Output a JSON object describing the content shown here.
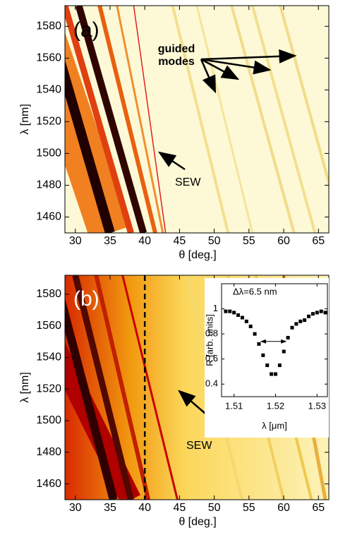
{
  "chart_data": [
    {
      "type": "heatmap",
      "xlabel": "θ [deg.]",
      "ylabel": "λ [nm]",
      "xlim": [
        28.5,
        66.5
      ],
      "xticks": [
        30,
        35,
        40,
        45,
        50,
        55,
        60,
        65
      ],
      "ylim": [
        1450,
        1593
      ],
      "yticks": [
        1460,
        1480,
        1500,
        1520,
        1540,
        1560,
        1580
      ],
      "annotations": [
        "(a)",
        "guided",
        "modes",
        "SEW"
      ]
    },
    {
      "type": "heatmap",
      "xlabel": "θ [deg.]",
      "ylabel": "λ [nm]",
      "xlim": [
        28.5,
        66.5
      ],
      "xticks": [
        30,
        35,
        40,
        45,
        50,
        55,
        60,
        65
      ],
      "ylim": [
        1450,
        1592
      ],
      "yticks": [
        1460,
        1480,
        1500,
        1520,
        1540,
        1560,
        1580
      ],
      "vline": 40,
      "annotations": [
        "(b)",
        "SEW"
      ]
    },
    {
      "type": "line",
      "xlabel": "λ [μm]",
      "ylabel": "R [arb. units]",
      "title": "Δλ=6.5 nm",
      "xlim": [
        1.507,
        1.5325
      ],
      "xticks": [
        1.51,
        1.52,
        1.53
      ],
      "ylim": [
        0.3,
        1.2
      ],
      "yticks": [
        0.4,
        0.6,
        0.8,
        1
      ],
      "x": [
        1.508,
        1.509,
        1.51,
        1.511,
        1.512,
        1.513,
        1.514,
        1.515,
        1.516,
        1.517,
        1.518,
        1.519,
        1.52,
        1.521,
        1.522,
        1.523,
        1.524,
        1.525,
        1.526,
        1.527,
        1.528,
        1.529,
        1.53,
        1.531,
        1.532
      ],
      "values": [
        0.98,
        0.98,
        0.97,
        0.95,
        0.93,
        0.9,
        0.86,
        0.8,
        0.72,
        0.63,
        0.55,
        0.48,
        0.48,
        0.55,
        0.66,
        0.77,
        0.85,
        0.88,
        0.9,
        0.91,
        0.94,
        0.96,
        0.97,
        0.98,
        0.97
      ],
      "color": "#000000"
    }
  ]
}
